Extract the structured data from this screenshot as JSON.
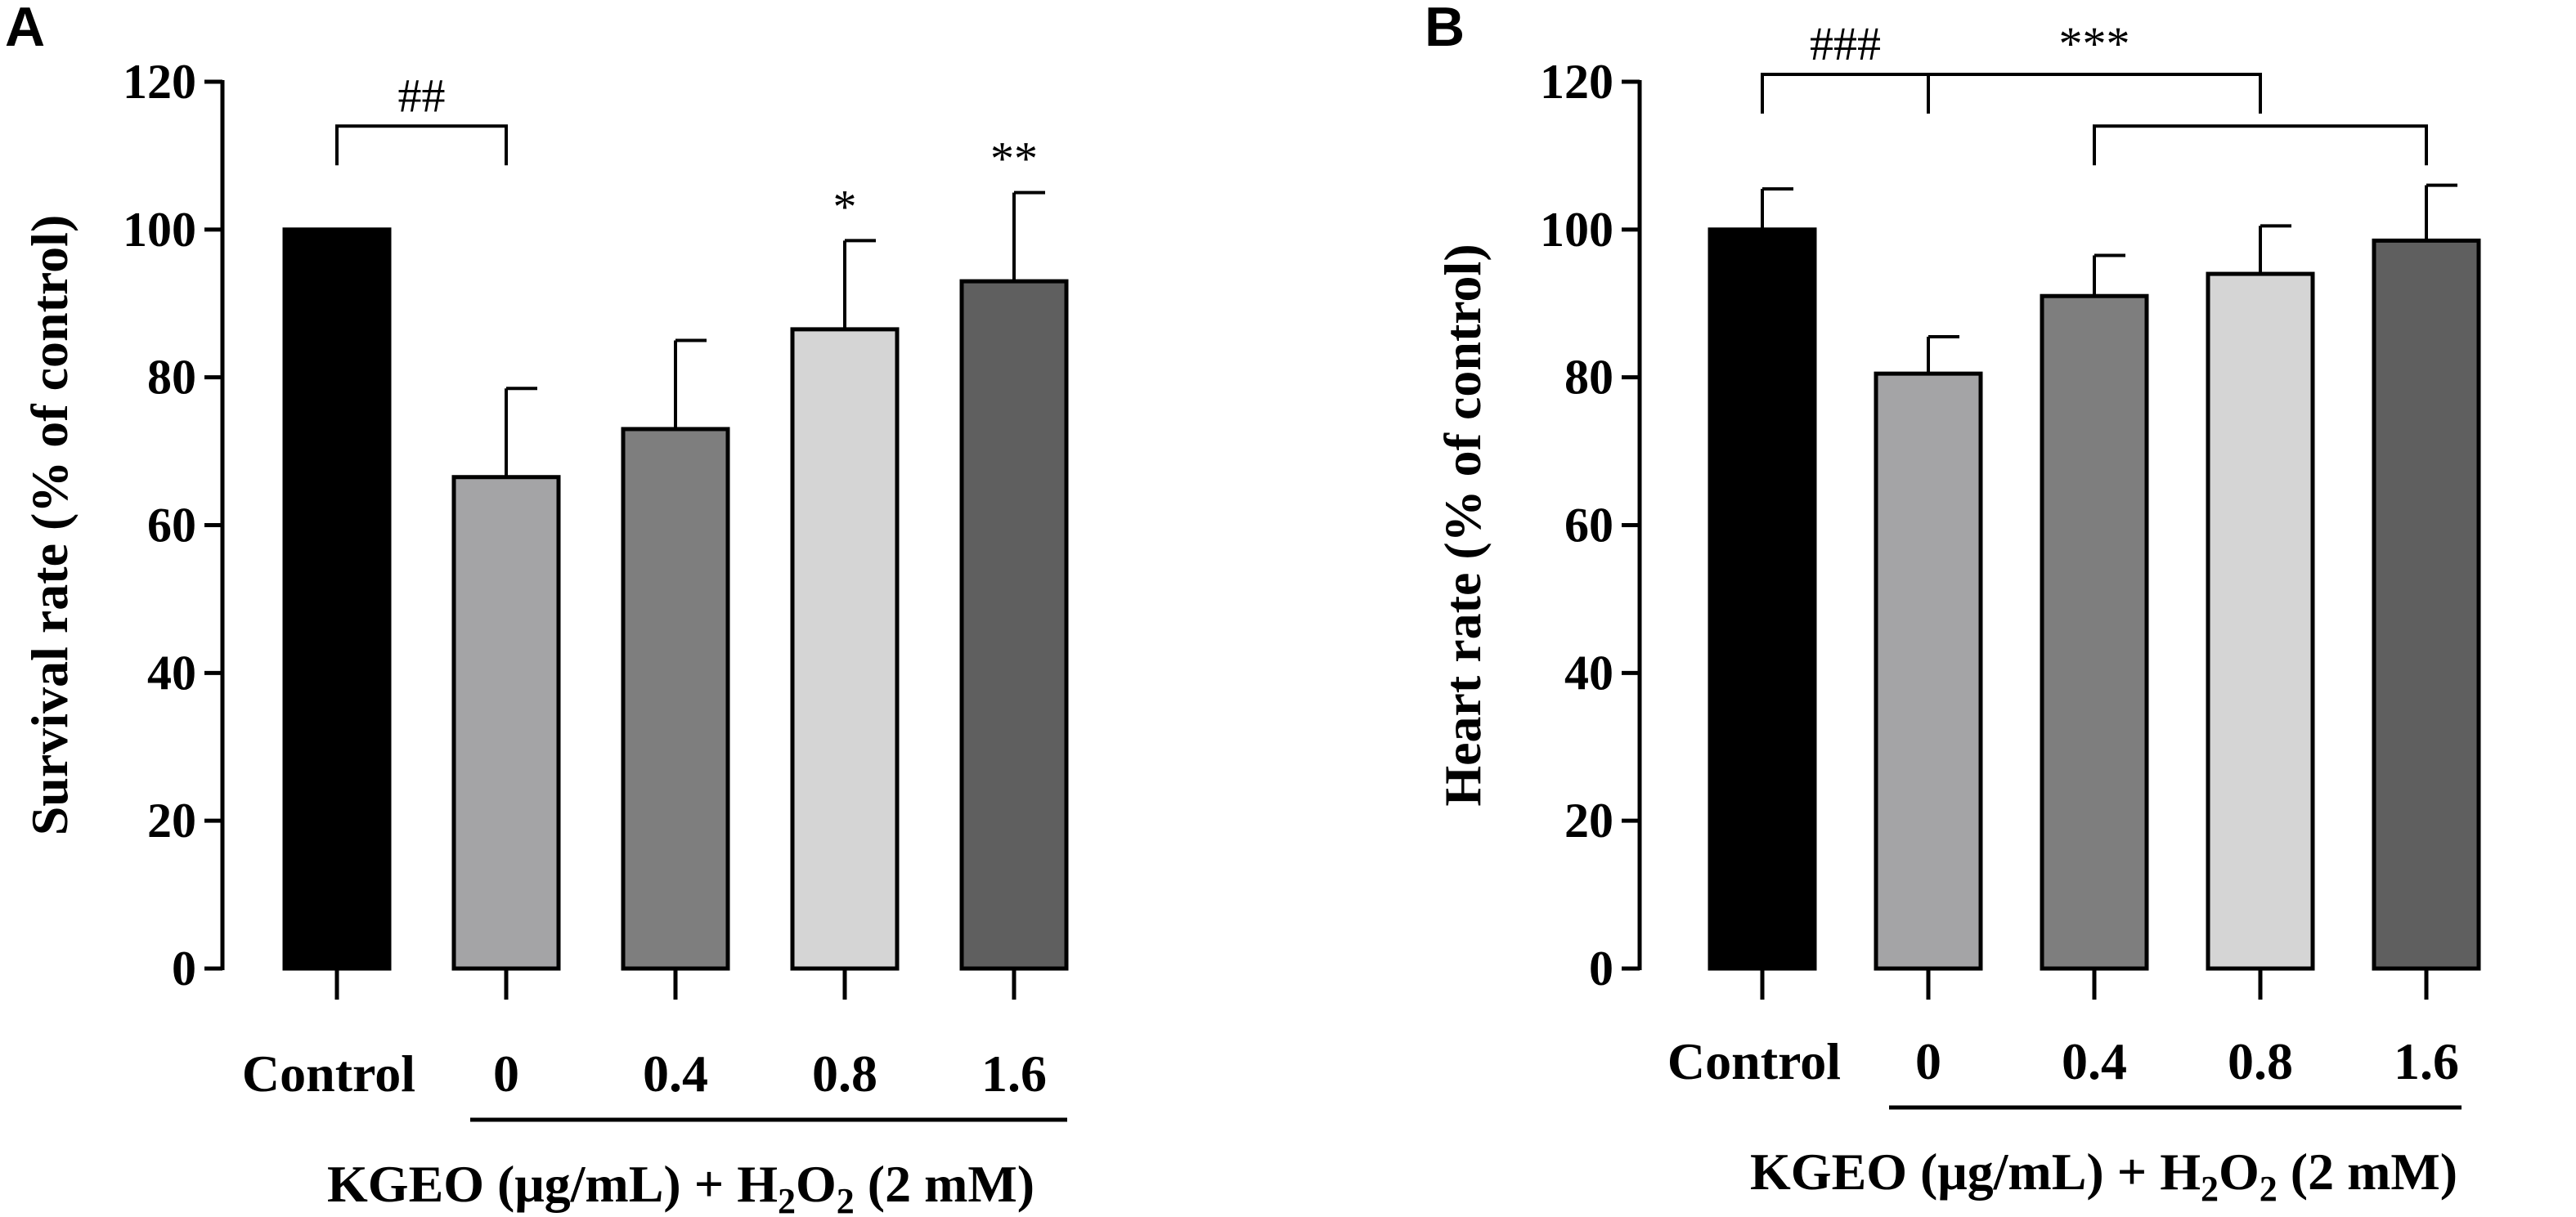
{
  "chart_data": [
    {
      "panel": "A",
      "type": "bar",
      "ylabel": "Survival rate (% of control)",
      "xlabel_group": "KGEO (μg/mL) + H2O2 (2 mM)",
      "xlabel_parts": {
        "a": "KGEO (μg/mL) + H",
        "sub1": "2",
        "b": "O",
        "sub2": "2",
        "c": "  (2 mM)"
      },
      "categories": [
        "Control",
        "0",
        "0.4",
        "0.8",
        "1.6"
      ],
      "values": [
        100,
        66.5,
        73,
        86.5,
        93
      ],
      "errors": [
        0,
        12,
        12,
        12,
        12
      ],
      "bar_colors": [
        "#000000",
        "#a4a4a6",
        "#7e7e7e",
        "#d5d5d5",
        "#5f5f5f"
      ],
      "ylim": [
        0,
        120
      ],
      "yticks": [
        "0",
        "20",
        "40",
        "60",
        "80",
        "100",
        "120"
      ],
      "annotations": [
        {
          "text": "##",
          "type": "bracket",
          "from": 0,
          "to": 1,
          "level": 114
        },
        {
          "text": "*",
          "type": "star",
          "bar": 3
        },
        {
          "text": "**",
          "type": "star",
          "bar": 4
        }
      ]
    },
    {
      "panel": "B",
      "type": "bar",
      "ylabel": "Heart rate (% of control)",
      "xlabel_group": "KGEO (μg/mL) + H2O2 (2 mM)",
      "xlabel_parts": {
        "a": "KGEO (μg/mL) + H",
        "sub1": "2",
        "b": "O",
        "sub2": "2",
        "c": " (2 mM)"
      },
      "categories": [
        "Control",
        "0",
        "0.4",
        "0.8",
        "1.6"
      ],
      "values": [
        100,
        80.5,
        91,
        94,
        98.5
      ],
      "errors": [
        5.5,
        5,
        5.5,
        6.5,
        7.5
      ],
      "bar_colors": [
        "#000000",
        "#a4a4a6",
        "#7e7e7e",
        "#d5d5d5",
        "#5f5f5f"
      ],
      "ylim": [
        0,
        120
      ],
      "yticks": [
        "0",
        "20",
        "40",
        "60",
        "80",
        "100",
        "120"
      ],
      "annotations": [
        {
          "text": "###",
          "type": "bracket",
          "from": 0,
          "to": 1,
          "level": 121
        },
        {
          "text": "***",
          "type": "bracket",
          "from": 1,
          "to": 3,
          "level": 121
        },
        {
          "text": "",
          "type": "bracket",
          "from": 2,
          "to": 4,
          "level": 114
        }
      ]
    }
  ]
}
